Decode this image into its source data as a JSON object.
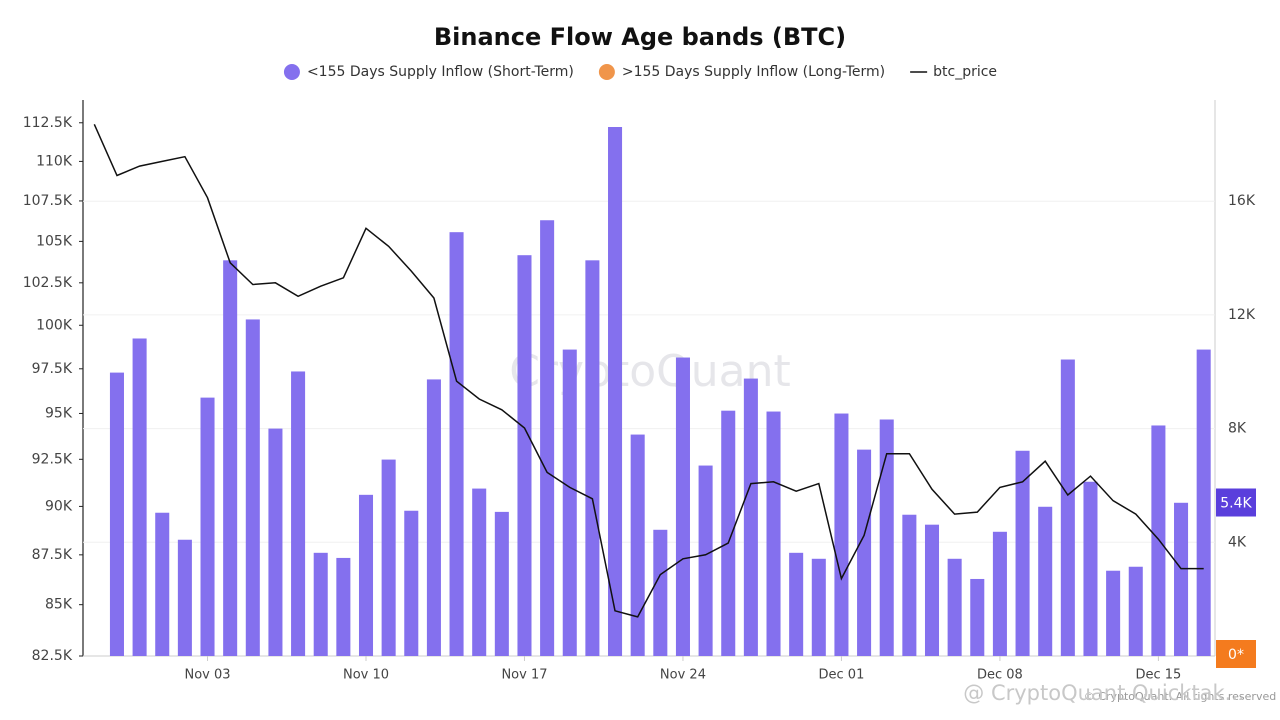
{
  "chart_data": {
    "type": "bar",
    "title": "Binance Flow Age bands (BTC)",
    "watermark": "CryptoQuant",
    "footer": "© CryptoQuant. All rights reserved",
    "overlay": "@ CryptoQuant Quicktak...",
    "categories": [
      null,
      null,
      null,
      null,
      null,
      "Nov 03",
      null,
      null,
      null,
      null,
      null,
      null,
      "Nov 10",
      null,
      null,
      null,
      null,
      null,
      null,
      "Nov 17",
      null,
      null,
      null,
      null,
      null,
      null,
      "Nov 24",
      null,
      null,
      null,
      null,
      null,
      null,
      "Dec 01",
      null,
      null,
      null,
      null,
      null,
      null,
      "Dec 08",
      null,
      null,
      null,
      null,
      null,
      null,
      "Dec 15",
      null,
      null
    ],
    "series": [
      {
        "name": "<155 Days Supply Inflow (Short-Term)",
        "type": "bar",
        "axis": "y2",
        "color": "#8470ee",
        "values": [
          null,
          9970,
          11170,
          5040,
          4090,
          9090,
          13920,
          11840,
          8000,
          10010,
          3630,
          3450,
          5670,
          6910,
          5110,
          9730,
          14910,
          5890,
          5070,
          14100,
          15330,
          10780,
          13920,
          18610,
          7790,
          4440,
          10500,
          6700,
          8630,
          9760,
          8600,
          3630,
          3420,
          8530,
          7260,
          8320,
          4970,
          4620,
          3420,
          2710,
          4370,
          7220,
          5250,
          10430,
          6130,
          3000,
          3140,
          8110,
          5390,
          10780
        ]
      },
      {
        "name": ">155 Days Supply Inflow (Long-Term)",
        "type": "bar",
        "axis": "y2",
        "color": "#f0954a",
        "values": [
          null,
          0,
          0,
          0,
          0,
          0,
          0,
          0,
          0,
          0,
          0,
          0,
          0,
          0,
          0,
          0,
          0,
          0,
          0,
          0,
          0,
          0,
          0,
          0,
          0,
          0,
          0,
          0,
          0,
          0,
          0,
          0,
          0,
          0,
          0,
          0,
          0,
          0,
          0,
          0,
          0,
          0,
          0,
          0,
          0,
          0,
          0,
          0,
          0,
          0
        ]
      },
      {
        "name": "btc_price",
        "type": "line",
        "color": "#111111",
        "values": [
          112400,
          109100,
          109700,
          110000,
          110300,
          107700,
          103700,
          102400,
          102500,
          101700,
          102300,
          102800,
          105800,
          104700,
          103200,
          101600,
          96800,
          95800,
          95200,
          94200,
          91800,
          91000,
          90400,
          84700,
          84400,
          86500,
          87300,
          87500,
          88100,
          91200,
          91300,
          90800,
          91200,
          86300,
          88500,
          92800,
          92800,
          90900,
          89600,
          89700,
          91000,
          91300,
          92400,
          90600,
          91600,
          90300,
          89600,
          88300,
          86800,
          86800
        ]
      }
    ],
    "ylim": [
      82500,
      114000
    ],
    "yscale": "log",
    "yticks": [
      {
        "value": 82500,
        "label": "82.5K"
      },
      {
        "value": 85000,
        "label": "85K"
      },
      {
        "value": 87500,
        "label": "87.5K"
      },
      {
        "value": 90000,
        "label": "90K"
      },
      {
        "value": 92500,
        "label": "92.5K"
      },
      {
        "value": 95000,
        "label": "95K"
      },
      {
        "value": 97500,
        "label": "97.5K"
      },
      {
        "value": 100000,
        "label": "100K"
      },
      {
        "value": 102500,
        "label": "102.5K"
      },
      {
        "value": 105000,
        "label": "105K"
      },
      {
        "value": 107500,
        "label": "107.5K"
      },
      {
        "value": 110000,
        "label": "110K"
      },
      {
        "value": 112500,
        "label": "112.5K"
      }
    ],
    "y2lim": [
      0,
      19560
    ],
    "y2ticks": [
      {
        "value": 4000,
        "label": "4K"
      },
      {
        "value": 8000,
        "label": "8K"
      },
      {
        "value": 12000,
        "label": "12K"
      },
      {
        "value": 16000,
        "label": "16K"
      }
    ],
    "badges": [
      {
        "value": 5400,
        "label": "5.4K",
        "color": "#5a3fdc"
      },
      {
        "value": 0,
        "label": "0*",
        "color": "#f47b1e"
      }
    ],
    "grid": true,
    "legend": "top"
  }
}
